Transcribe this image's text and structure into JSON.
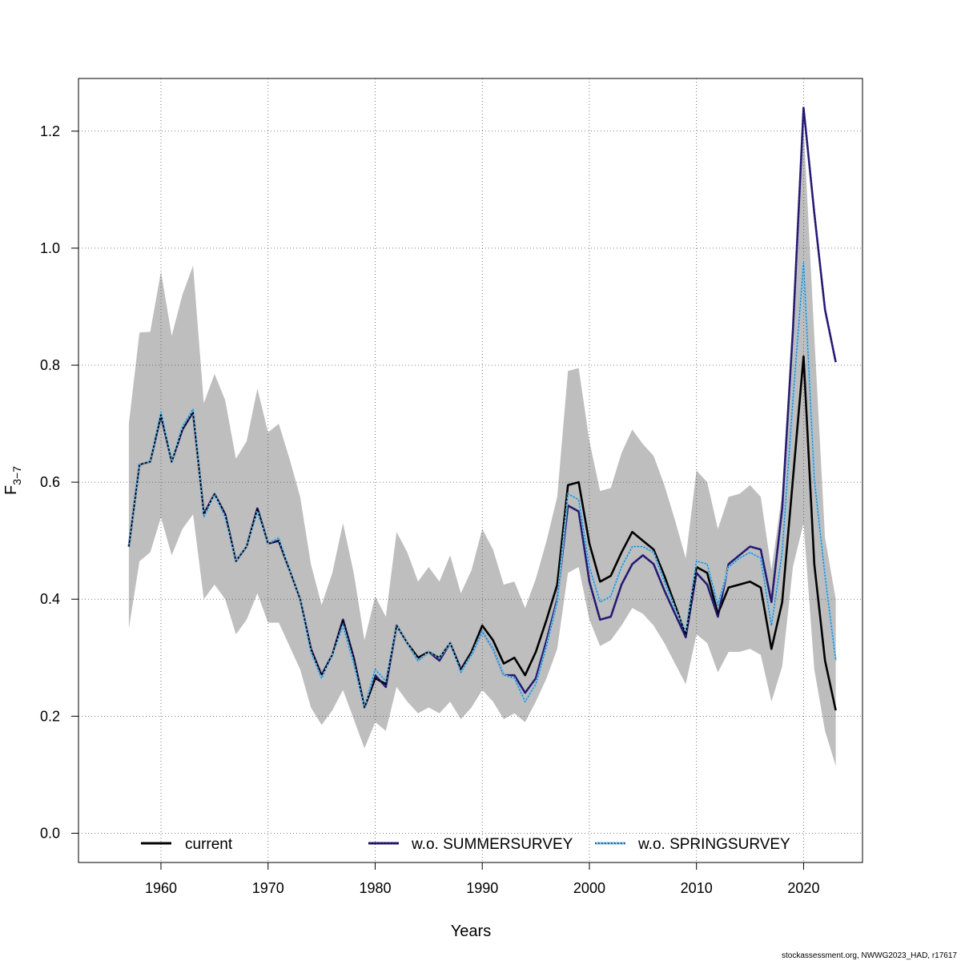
{
  "chart_data": {
    "type": "line",
    "xlabel": "Years",
    "ylabel_main": "F",
    "ylabel_sub": "3−7",
    "credit": "stockassessment.org, NWWG2023_HAD, r17617",
    "xlim": [
      1952.3,
      2025.5
    ],
    "ylim": [
      -0.05,
      1.29
    ],
    "x_ticks": [
      1960,
      1970,
      1980,
      1990,
      2000,
      2010,
      2020
    ],
    "y_ticks": [
      0.0,
      0.2,
      0.4,
      0.6,
      0.8,
      1.0,
      1.2
    ],
    "y_tick_labels": [
      "0.0",
      "0.2",
      "0.4",
      "0.6",
      "0.8",
      "1.0",
      "1.2"
    ],
    "grid": true,
    "legend_position": "bottom",
    "colors": {
      "band": "#bebebe",
      "current": "#000000",
      "summer": "#2a1f80",
      "spring": "#73c2f0"
    },
    "years": [
      1957,
      1958,
      1959,
      1960,
      1961,
      1962,
      1963,
      1964,
      1965,
      1966,
      1967,
      1968,
      1969,
      1970,
      1971,
      1972,
      1973,
      1974,
      1975,
      1976,
      1977,
      1978,
      1979,
      1980,
      1981,
      1982,
      1983,
      1984,
      1985,
      1986,
      1987,
      1988,
      1989,
      1990,
      1991,
      1992,
      1993,
      1994,
      1995,
      1996,
      1997,
      1998,
      1999,
      2000,
      2001,
      2002,
      2003,
      2004,
      2005,
      2006,
      2007,
      2008,
      2009,
      2010,
      2011,
      2012,
      2013,
      2014,
      2015,
      2016,
      2017,
      2018,
      2019,
      2020,
      2021,
      2022,
      2023
    ],
    "band_upper": [
      0.7,
      0.856,
      0.857,
      0.96,
      0.85,
      0.92,
      0.97,
      0.735,
      0.785,
      0.74,
      0.64,
      0.67,
      0.76,
      0.685,
      0.7,
      0.64,
      0.575,
      0.46,
      0.39,
      0.445,
      0.53,
      0.445,
      0.33,
      0.405,
      0.37,
      0.515,
      0.48,
      0.43,
      0.455,
      0.43,
      0.475,
      0.41,
      0.45,
      0.52,
      0.485,
      0.425,
      0.43,
      0.385,
      0.435,
      0.5,
      0.575,
      0.79,
      0.795,
      0.67,
      0.585,
      0.59,
      0.65,
      0.69,
      0.665,
      0.645,
      0.595,
      0.535,
      0.47,
      0.62,
      0.6,
      0.52,
      0.575,
      0.58,
      0.595,
      0.575,
      0.45,
      0.58,
      0.84,
      1.21,
      0.85,
      0.505,
      0.4
    ],
    "band_lower": [
      0.35,
      0.465,
      0.48,
      0.54,
      0.475,
      0.52,
      0.545,
      0.4,
      0.425,
      0.4,
      0.34,
      0.365,
      0.41,
      0.36,
      0.36,
      0.32,
      0.28,
      0.215,
      0.185,
      0.21,
      0.245,
      0.195,
      0.145,
      0.19,
      0.175,
      0.25,
      0.225,
      0.205,
      0.215,
      0.205,
      0.225,
      0.195,
      0.215,
      0.245,
      0.225,
      0.195,
      0.205,
      0.19,
      0.225,
      0.265,
      0.315,
      0.445,
      0.455,
      0.365,
      0.32,
      0.33,
      0.355,
      0.385,
      0.375,
      0.355,
      0.325,
      0.29,
      0.255,
      0.34,
      0.325,
      0.275,
      0.31,
      0.31,
      0.315,
      0.305,
      0.225,
      0.285,
      0.455,
      0.53,
      0.28,
      0.175,
      0.115
    ],
    "series": [
      {
        "name": "current",
        "values": [
          0.49,
          0.63,
          0.635,
          0.715,
          0.635,
          0.69,
          0.72,
          0.545,
          0.58,
          0.545,
          0.465,
          0.49,
          0.555,
          0.495,
          0.5,
          0.45,
          0.4,
          0.315,
          0.27,
          0.305,
          0.365,
          0.3,
          0.215,
          0.265,
          0.255,
          0.355,
          0.325,
          0.3,
          0.31,
          0.3,
          0.325,
          0.28,
          0.31,
          0.355,
          0.33,
          0.29,
          0.3,
          0.27,
          0.31,
          0.365,
          0.425,
          0.595,
          0.6,
          0.495,
          0.43,
          0.44,
          0.48,
          0.515,
          0.5,
          0.485,
          0.44,
          0.39,
          0.34,
          0.455,
          0.445,
          0.375,
          0.42,
          0.425,
          0.43,
          0.42,
          0.315,
          0.395,
          0.605,
          0.815,
          0.46,
          0.295,
          0.21
        ]
      },
      {
        "name": "w.o. SUMMERSURVEY",
        "values": [
          0.49,
          0.63,
          0.635,
          0.715,
          0.635,
          0.69,
          0.72,
          0.545,
          0.58,
          0.545,
          0.465,
          0.49,
          0.555,
          0.495,
          0.5,
          0.45,
          0.4,
          0.315,
          0.27,
          0.305,
          0.365,
          0.3,
          0.215,
          0.27,
          0.25,
          0.355,
          0.325,
          0.295,
          0.31,
          0.295,
          0.325,
          0.28,
          0.305,
          0.345,
          0.315,
          0.27,
          0.27,
          0.24,
          0.265,
          0.33,
          0.4,
          0.56,
          0.55,
          0.43,
          0.365,
          0.37,
          0.425,
          0.46,
          0.475,
          0.46,
          0.415,
          0.375,
          0.335,
          0.445,
          0.425,
          0.37,
          0.46,
          0.475,
          0.49,
          0.485,
          0.395,
          0.555,
          0.86,
          1.24,
          1.06,
          0.895,
          0.805
        ]
      },
      {
        "name": "w.o. SPRINGSURVEY",
        "values": [
          0.49,
          0.63,
          0.635,
          0.72,
          0.635,
          0.695,
          0.725,
          0.54,
          0.58,
          0.54,
          0.465,
          0.49,
          0.55,
          0.495,
          0.505,
          0.45,
          0.4,
          0.31,
          0.265,
          0.305,
          0.355,
          0.29,
          0.215,
          0.28,
          0.26,
          0.355,
          0.325,
          0.295,
          0.31,
          0.3,
          0.325,
          0.275,
          0.305,
          0.345,
          0.315,
          0.27,
          0.265,
          0.225,
          0.255,
          0.32,
          0.395,
          0.58,
          0.57,
          0.455,
          0.395,
          0.405,
          0.455,
          0.49,
          0.49,
          0.48,
          0.43,
          0.385,
          0.345,
          0.465,
          0.46,
          0.39,
          0.455,
          0.47,
          0.48,
          0.47,
          0.355,
          0.48,
          0.74,
          0.975,
          0.605,
          0.44,
          0.295
        ]
      }
    ]
  }
}
